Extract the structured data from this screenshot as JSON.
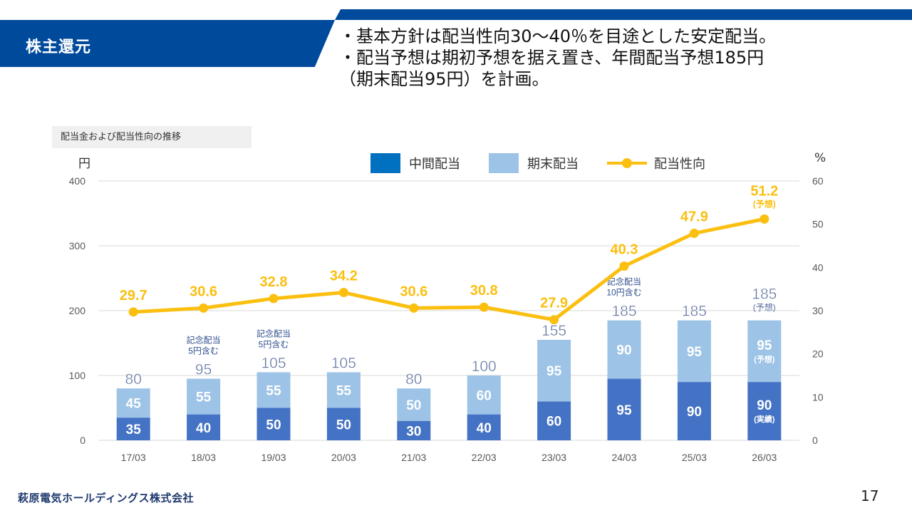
{
  "header": {
    "title": "株主還元",
    "summary_lines": [
      "・基本方針は配当性向30～40％を目途とした安定配当。",
      "・配当予想は期初予想を据え置き、年間配当予想185円",
      "（期末配当95円）を計画。"
    ]
  },
  "chart_caption": "配当金および配当性向の推移",
  "footer": {
    "company": "萩原電気ホールディングス株式会社",
    "page_number": "17"
  },
  "colors": {
    "header_blue": "#004a9b",
    "interim": "#4472c4",
    "year_end": "#9dc3e6",
    "payout": "#fbbf10",
    "total_label": "#5a6e9c",
    "note_label": "#2f4f8f"
  },
  "chart_data": {
    "type": "bar",
    "title": "配当金および配当性向の推移",
    "categories": [
      "17/03",
      "18/03",
      "19/03",
      "20/03",
      "21/03",
      "22/03",
      "23/03",
      "24/03",
      "25/03",
      "26/03"
    ],
    "y_left": {
      "label": "円",
      "range": [
        0,
        400
      ],
      "ticks": [
        0,
        100,
        200,
        300,
        400
      ]
    },
    "y_right": {
      "label": "%",
      "range": [
        0,
        60
      ],
      "ticks": [
        0,
        10,
        20,
        30,
        40,
        50,
        60
      ]
    },
    "grid": true,
    "legend": {
      "position": "top-right",
      "entries": [
        {
          "name": "中間配当",
          "kind": "bar"
        },
        {
          "name": "期末配当",
          "kind": "bar"
        },
        {
          "name": "配当性向",
          "kind": "line"
        }
      ]
    },
    "series": [
      {
        "name": "中間配当",
        "type": "stacked-bar",
        "axis": "left",
        "values": [
          35,
          40,
          50,
          50,
          30,
          40,
          60,
          95,
          90,
          90
        ],
        "sublabels": [
          "",
          "",
          "",
          "",
          "",
          "",
          "",
          "",
          "",
          "(実績)"
        ]
      },
      {
        "name": "期末配当",
        "type": "stacked-bar",
        "axis": "left",
        "values": [
          45,
          55,
          55,
          55,
          50,
          60,
          95,
          90,
          95,
          95
        ],
        "sublabels": [
          "",
          "",
          "",
          "",
          "",
          "",
          "",
          "",
          "",
          "(予想)"
        ]
      },
      {
        "name": "配当性向",
        "type": "line",
        "axis": "right",
        "values": [
          29.7,
          30.6,
          32.8,
          34.2,
          30.6,
          30.8,
          27.9,
          40.3,
          47.9,
          51.2
        ],
        "labels": [
          "29.7",
          "30.6",
          "32.8",
          "34.2",
          "30.6",
          "30.8",
          "27.9",
          "40.3",
          "47.9",
          "51.2"
        ],
        "sublabels": [
          "",
          "",
          "",
          "",
          "",
          "",
          "",
          "",
          "",
          "(予想)"
        ]
      }
    ],
    "totals": [
      80,
      95,
      105,
      105,
      80,
      100,
      155,
      185,
      185,
      185
    ],
    "total_sublabels": [
      "",
      "",
      "",
      "",
      "",
      "",
      "",
      "",
      "",
      "(予想)"
    ],
    "annotations": [
      {
        "category": "18/03",
        "lines": [
          "記念配当",
          "5円含む"
        ]
      },
      {
        "category": "19/03",
        "lines": [
          "記念配当",
          "5円含む"
        ]
      },
      {
        "category": "24/03",
        "lines": [
          "記念配当",
          "10円含む"
        ]
      }
    ]
  }
}
